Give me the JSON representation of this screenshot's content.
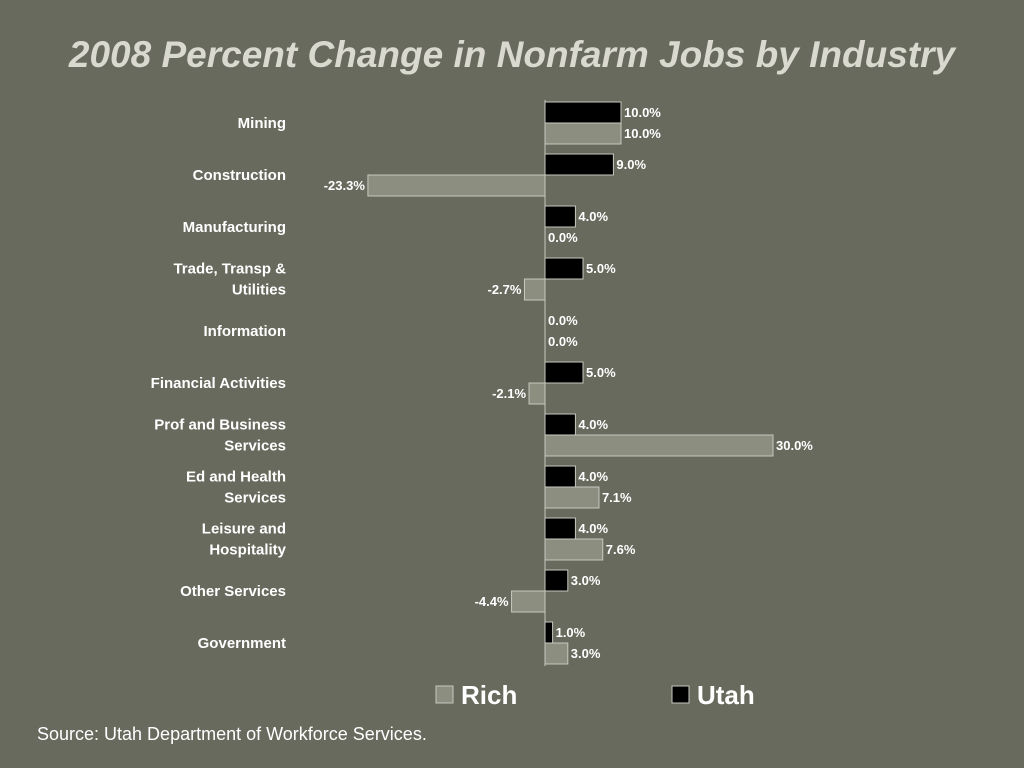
{
  "chart_data": {
    "type": "bar",
    "orientation": "horizontal",
    "title": "2008 Percent Change in Nonfarm Jobs by Industry",
    "xlabel": "",
    "ylabel": "",
    "xlim": [
      -25,
      32
    ],
    "grid": false,
    "legend": "bottom",
    "categories": [
      [
        "Mining"
      ],
      [
        "Construction"
      ],
      [
        "Manufacturing"
      ],
      [
        "Trade, Transp &",
        "Utilities"
      ],
      [
        "Information"
      ],
      [
        "Financial Activities"
      ],
      [
        "Prof and Business",
        "Services"
      ],
      [
        "Ed and Health",
        "Services"
      ],
      [
        "Leisure and",
        "Hospitality"
      ],
      [
        "Other Services"
      ],
      [
        "Government"
      ]
    ],
    "series": [
      {
        "name": "Utah",
        "color": "#000000",
        "values": [
          10.0,
          9.0,
          4.0,
          5.0,
          0.0,
          5.0,
          4.0,
          4.0,
          4.0,
          3.0,
          1.0
        ],
        "labels": [
          "10.0%",
          "9.0%",
          "4.0%",
          "5.0%",
          "0.0%",
          "5.0%",
          "4.0%",
          "4.0%",
          "4.0%",
          "3.0%",
          "1.0%"
        ]
      },
      {
        "name": "Rich",
        "color": "#8c8e80",
        "values": [
          10.0,
          -23.3,
          0.0,
          -2.7,
          0.0,
          -2.1,
          30.0,
          7.1,
          7.6,
          -4.4,
          3.0
        ],
        "labels": [
          "10.0%",
          "-23.3%",
          "0.0%",
          "-2.7%",
          "0.0%",
          "-2.1%",
          "30.0%",
          "7.1%",
          "7.6%",
          "-4.4%",
          "3.0%"
        ]
      }
    ],
    "legend_order": [
      "Rich",
      "Utah"
    ]
  },
  "source": "Source: Utah Department of Workforce Services."
}
